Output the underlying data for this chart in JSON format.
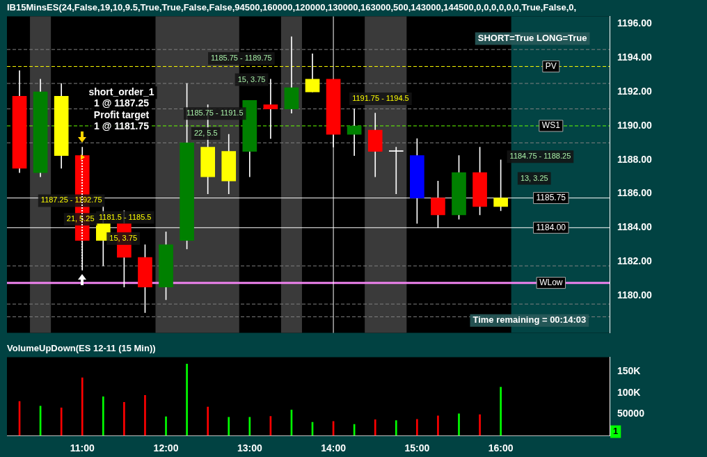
{
  "chart_data": [
    {
      "type": "candlestick",
      "title": "IB15MinsES(24,False,19,10,9.5,True,True,False,False,94500,160000,120000,130000,163000,500,143000,144500,0,0,0,0,0,0,True,False,0,",
      "x": [
        10.25,
        10.5,
        10.75,
        11,
        11.25,
        11.5,
        11.75,
        12,
        12.25,
        12.5,
        12.75,
        13,
        13.25,
        13.5,
        13.75,
        14,
        14.25,
        14.5,
        14.75,
        15,
        15.25,
        15.5,
        15.75,
        16
      ],
      "ohlc": [
        [
          1191.75,
          1193.25,
          1187.25,
          1187.5
        ],
        [
          1187.25,
          1192.75,
          1187,
          1192
        ],
        [
          1191.75,
          1192.5,
          1187.5,
          1188.25
        ],
        [
          1188.25,
          1188.75,
          1181.5,
          1183.25
        ],
        [
          1184.25,
          1185.25,
          1181.75,
          1183.25
        ],
        [
          1184.25,
          1185,
          1180.5,
          1182.25
        ],
        [
          1182.25,
          1183,
          1179,
          1180.5
        ],
        [
          1180.5,
          1183.75,
          1179.75,
          1183
        ],
        [
          1183.25,
          1192.5,
          1182.75,
          1189
        ],
        [
          1188.75,
          1191.25,
          1186,
          1187
        ],
        [
          1188.5,
          1189.5,
          1186,
          1186.75
        ],
        [
          1188.5,
          1191.5,
          1187,
          1191.5
        ],
        [
          1191.25,
          1192.75,
          1189.25,
          1191
        ],
        [
          1191,
          1195.25,
          1190.75,
          1192.25
        ],
        [
          1192.75,
          1194.25,
          1192,
          1192
        ],
        [
          1192.75,
          1192.75,
          1188.75,
          1189.5
        ],
        [
          1189.5,
          1191,
          1188.25,
          1190
        ],
        [
          1189.75,
          1190.75,
          1187,
          1188.5
        ],
        [
          1188.5,
          1188.75,
          1186,
          1188.5
        ],
        [
          1188.25,
          1189.25,
          1184.25,
          1185.75
        ],
        [
          1185.75,
          1186.75,
          1184,
          1184.75
        ],
        [
          1184.75,
          1188.25,
          1184.5,
          1187.25
        ],
        [
          1187.25,
          1188.75,
          1184.75,
          1185.25
        ],
        [
          1185.25,
          1188,
          1185,
          1185.75
        ]
      ],
      "colors": [
        "#ff0000",
        "#008000",
        "#ffff00",
        "#ff0000",
        "#ffff00",
        "#ff0000",
        "#ff0000",
        "#008000",
        "#008000",
        "#ffff00",
        "#ffff00",
        "#008000",
        "#ff0000",
        "#008000",
        "#ffff00",
        "#ff0000",
        "#008000",
        "#ff0000",
        "#ffffff",
        "#0000ff",
        "#ff0000",
        "#008000",
        "#ff0000",
        "#ffff00"
      ],
      "xlim": [
        10.1,
        17.3
      ],
      "ylim": [
        1177.8,
        1196.45
      ],
      "yticks": [
        {
          "value": 1180,
          "label": "1180.00"
        },
        {
          "value": 1182,
          "label": "1182.00"
        },
        {
          "value": 1184,
          "label": "1184.00"
        },
        {
          "value": 1186,
          "label": "1186.00"
        },
        {
          "value": 1188,
          "label": "1188.00"
        },
        {
          "value": 1190,
          "label": "1190.00"
        },
        {
          "value": 1192,
          "label": "1192.00"
        },
        {
          "value": 1194,
          "label": "1194.00"
        },
        {
          "value": 1196,
          "label": "1196.00"
        }
      ],
      "tick_labels": "y",
      "bands": [
        {
          "axis": "x",
          "from": 10.375,
          "to": 10.625,
          "color": "#3a3a3a"
        },
        {
          "axis": "x",
          "from": 11.875,
          "to": 12.875,
          "color": "#3a3a3a"
        },
        {
          "axis": "x",
          "from": 13.375,
          "to": 13.625,
          "color": "#3a3a3a"
        },
        {
          "axis": "x",
          "from": 14.375,
          "to": 14.875,
          "color": "#3a3a3a"
        },
        {
          "axis": "x",
          "from": 16.125,
          "to": 17.3,
          "color": "#024444"
        }
      ],
      "ref_lines": [
        {
          "axis": "y",
          "value": 1194.5,
          "color": "#808080",
          "line_style": "dashed"
        },
        {
          "axis": "y",
          "value": 1192.5,
          "color": "#808080",
          "line_style": "dashed"
        },
        {
          "axis": "y",
          "value": 1191,
          "color": "#808080",
          "line_style": "dashed"
        },
        {
          "axis": "y",
          "value": 1189,
          "color": "#808080",
          "line_style": "dashed"
        },
        {
          "axis": "y",
          "value": 1181.75,
          "color": "#808080",
          "line_style": "dashed"
        },
        {
          "axis": "y",
          "value": 1179.5,
          "color": "#808080",
          "line_style": "dashed"
        },
        {
          "axis": "y",
          "value": 1178.75,
          "color": "#808080",
          "line_style": "dashed"
        },
        {
          "axis": "y",
          "value": 1193.5,
          "label": "PV",
          "color": "#ffff00",
          "line_style": "dashed"
        },
        {
          "axis": "y",
          "value": 1190,
          "label": "WS1",
          "color": "#66ff00",
          "line_style": "dashed"
        },
        {
          "axis": "y",
          "value": 1180.75,
          "label": "WLow",
          "color": "#ee82ee",
          "line_style": "solid"
        },
        {
          "axis": "y",
          "value": 1184,
          "label": "1184.00",
          "color": "#ffffff",
          "line_style": "solid"
        },
        {
          "axis": "y",
          "value": 1185.75,
          "label": "1185.75",
          "color": "#ffffff",
          "line_style": "solid"
        },
        {
          "axis": "x",
          "value": 14,
          "color": "#ffffff",
          "line_style": "solid"
        }
      ],
      "annotations": [
        "SHORT=True LONG=True",
        "Time remaining = 00:14:03",
        "1185.75 - 1189.75",
        "15, 3.75",
        "1185.75 - 1191.5",
        "22, 5.5",
        "1191.75 - 1194.5",
        "1187.25 - 1192.75",
        "21, 5.25",
        "1181.5 - 1185.5",
        "15, 3.75",
        "1184.75 - 1188.25",
        "13, 3.25",
        "short_order_1",
        "1 @ 1187.25",
        "Profit target",
        "1 @ 1181.75"
      ]
    },
    {
      "type": "bar",
      "title": "VolumeUpDown(ES 12-11 (15 Min))",
      "x": [
        10.25,
        10.5,
        10.75,
        11,
        11.25,
        11.5,
        11.75,
        12,
        12.25,
        12.5,
        12.75,
        13,
        13.25,
        13.5,
        13.75,
        14,
        14.25,
        14.5,
        14.75,
        15,
        15.25,
        15.5,
        15.75,
        16
      ],
      "values": [
        80000,
        69000,
        65000,
        135000,
        91000,
        78000,
        94000,
        44000,
        167000,
        67000,
        43000,
        43000,
        45000,
        60000,
        31000,
        33000,
        26000,
        37000,
        35000,
        38000,
        46000,
        51000,
        49000,
        113000
      ],
      "colors": [
        "#ff0000",
        "#00ff00",
        "#ff0000",
        "#ff0000",
        "#00ff00",
        "#ff0000",
        "#ff0000",
        "#00ff00",
        "#00ff00",
        "#ff0000",
        "#00ff00",
        "#00ff00",
        "#ff0000",
        "#00ff00",
        "#00ff00",
        "#ff0000",
        "#00ff00",
        "#ff0000",
        "#00ff00",
        "#ff0000",
        "#ff0000",
        "#00ff00",
        "#ff0000",
        "#00ff00"
      ],
      "xlim": [
        10.1,
        17.3
      ],
      "ylim": [
        0,
        183000
      ],
      "xticks": [
        {
          "value": 11,
          "label": "11:00"
        },
        {
          "value": 12,
          "label": "12:00"
        },
        {
          "value": 13,
          "label": "13:00"
        },
        {
          "value": 14,
          "label": "14:00"
        },
        {
          "value": 15,
          "label": "15:00"
        },
        {
          "value": 16,
          "label": "16:00"
        }
      ],
      "yticks": [
        50000,
        {
          "value": 100000,
          "label": "100K"
        },
        {
          "value": 150000,
          "label": "150K"
        }
      ],
      "annotations": [
        "1"
      ]
    }
  ]
}
